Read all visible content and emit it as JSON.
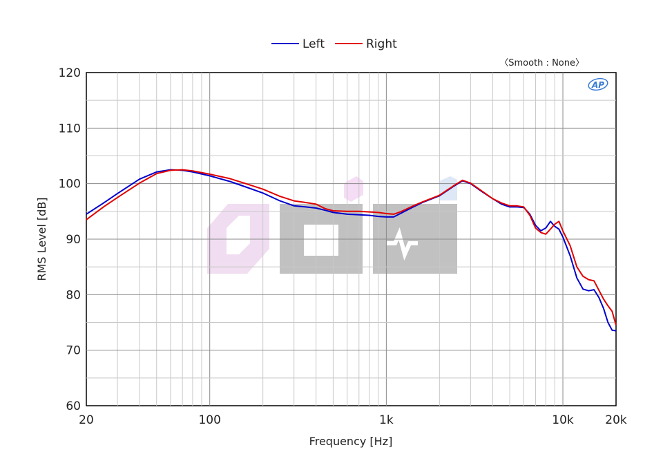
{
  "chart_data": {
    "type": "line",
    "xlabel": "Frequency [Hz]",
    "ylabel": "RMS Level [dB]",
    "x_scale": "log",
    "xlim": [
      20,
      20000
    ],
    "ylim": [
      60,
      120
    ],
    "x_ticks": [
      {
        "value": 20,
        "label": "20"
      },
      {
        "value": 100,
        "label": "100"
      },
      {
        "value": 1000,
        "label": "1k"
      },
      {
        "value": 10000,
        "label": "10k"
      },
      {
        "value": 20000,
        "label": "20k"
      }
    ],
    "y_ticks": [
      60,
      70,
      80,
      90,
      100,
      110,
      120
    ],
    "grid": true,
    "legend_position": "top-center",
    "annotation": "〈Smooth : None〉",
    "logo_text": "AP",
    "series": [
      {
        "name": "Left",
        "color": "#0000cc",
        "x": [
          20,
          25,
          30,
          40,
          50,
          60,
          70,
          80,
          100,
          130,
          160,
          200,
          250,
          300,
          350,
          400,
          450,
          500,
          600,
          700,
          800,
          900,
          1000,
          1100,
          1200,
          1400,
          1600,
          2000,
          2400,
          2700,
          3000,
          3500,
          4000,
          4500,
          5000,
          5500,
          6000,
          6500,
          7000,
          7500,
          8000,
          8500,
          9000,
          9500,
          10000,
          11000,
          12000,
          13000,
          14000,
          15000,
          16000,
          17000,
          18000,
          19000,
          20000
        ],
        "y": [
          94.5,
          96.5,
          98.2,
          100.8,
          102.1,
          102.5,
          102.4,
          102.1,
          101.4,
          100.4,
          99.4,
          98.3,
          96.9,
          96.0,
          95.8,
          95.6,
          95.2,
          94.8,
          94.5,
          94.4,
          94.3,
          94.1,
          94.0,
          94.0,
          94.6,
          95.7,
          96.6,
          97.8,
          99.5,
          100.5,
          100.0,
          98.5,
          97.3,
          96.3,
          95.8,
          95.8,
          95.7,
          94.5,
          92.5,
          91.5,
          92.0,
          93.2,
          92.3,
          91.8,
          90.4,
          87.0,
          83.0,
          81.0,
          80.7,
          80.9,
          79.5,
          77.5,
          75.0,
          73.6,
          73.5
        ]
      },
      {
        "name": "Right",
        "color": "#e00000",
        "x": [
          20,
          25,
          30,
          40,
          50,
          60,
          70,
          80,
          100,
          130,
          160,
          200,
          250,
          300,
          350,
          400,
          450,
          500,
          600,
          700,
          800,
          900,
          1000,
          1100,
          1200,
          1400,
          1600,
          2000,
          2400,
          2700,
          3000,
          3500,
          4000,
          4500,
          5000,
          5500,
          6000,
          6500,
          7000,
          7500,
          8000,
          8500,
          9000,
          9500,
          10000,
          11000,
          12000,
          13000,
          14000,
          15000,
          16000,
          17000,
          18000,
          19000,
          20000
        ],
        "y": [
          93.5,
          95.8,
          97.5,
          100.1,
          101.8,
          102.4,
          102.5,
          102.3,
          101.7,
          100.9,
          100.0,
          99.0,
          97.7,
          96.9,
          96.6,
          96.3,
          95.5,
          95.1,
          95.0,
          95.0,
          94.9,
          94.8,
          94.6,
          94.5,
          94.9,
          95.9,
          96.7,
          97.9,
          99.6,
          100.6,
          100.1,
          98.6,
          97.3,
          96.5,
          96.0,
          96.0,
          95.8,
          94.3,
          92.0,
          91.2,
          90.9,
          91.8,
          92.7,
          93.2,
          91.5,
          88.8,
          85.0,
          83.3,
          82.7,
          82.5,
          80.8,
          79.2,
          78.0,
          77.0,
          74.5
        ]
      }
    ]
  }
}
